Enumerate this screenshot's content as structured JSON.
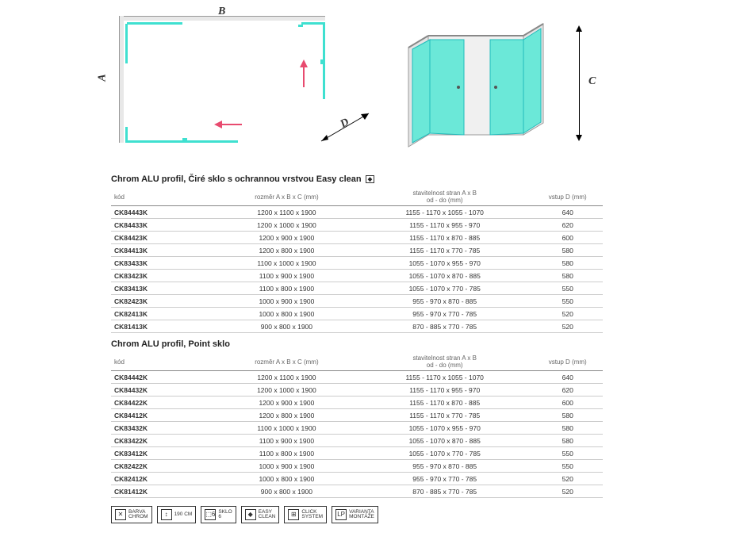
{
  "diagram": {
    "labels": {
      "A": "A",
      "B": "B",
      "C": "C",
      "D": "D"
    },
    "colors": {
      "glass": "#3fe0d0",
      "wall": "#e8e8e8",
      "arrow": "#e84b6f",
      "dim_line": "#000000"
    }
  },
  "table1": {
    "title": "Chrom ALU profil, Čiré sklo s ochrannou vrstvou Easy clean",
    "headers": {
      "code": "kód",
      "dim": "rozměr A x B x C (mm)",
      "adj": "stavitelnost stran A x B\nod - do (mm)",
      "entry": "vstup D (mm)"
    },
    "rows": [
      {
        "code": "CK84443K",
        "dim": "1200 x 1100 x 1900",
        "adj": "1155 - 1170 x 1055 - 1070",
        "entry": "640"
      },
      {
        "code": "CK84433K",
        "dim": "1200 x 1000 x 1900",
        "adj": "1155 - 1170 x 955 - 970",
        "entry": "620"
      },
      {
        "code": "CK84423K",
        "dim": "1200 x 900 x 1900",
        "adj": "1155 - 1170 x 870 - 885",
        "entry": "600"
      },
      {
        "code": "CK84413K",
        "dim": "1200 x 800 x 1900",
        "adj": "1155 - 1170 x 770 - 785",
        "entry": "580"
      },
      {
        "code": "CK83433K",
        "dim": "1100 x 1000 x 1900",
        "adj": "1055 - 1070 x 955 - 970",
        "entry": "580"
      },
      {
        "code": "CK83423K",
        "dim": "1100 x 900 x 1900",
        "adj": "1055 - 1070 x 870 - 885",
        "entry": "580"
      },
      {
        "code": "CK83413K",
        "dim": "1100 x 800 x 1900",
        "adj": "1055 - 1070 x 770 - 785",
        "entry": "550"
      },
      {
        "code": "CK82423K",
        "dim": "1000 x 900 x 1900",
        "adj": "955 - 970 x 870 - 885",
        "entry": "550"
      },
      {
        "code": "CK82413K",
        "dim": "1000 x 800 x 1900",
        "adj": "955 - 970 x 770 - 785",
        "entry": "520"
      },
      {
        "code": "CK81413K",
        "dim": "900 x 800 x 1900",
        "adj": "870 - 885 x 770 - 785",
        "entry": "520"
      }
    ]
  },
  "table2": {
    "title": "Chrom ALU profil, Point sklo",
    "headers": {
      "code": "kód",
      "dim": "rozměr A x B x C (mm)",
      "adj": "stavitelnost stran A x B\nod - do (mm)",
      "entry": "vstup D (mm)"
    },
    "rows": [
      {
        "code": "CK84442K",
        "dim": "1200 x 1100 x 1900",
        "adj": "1155 - 1170 x 1055 - 1070",
        "entry": "640"
      },
      {
        "code": "CK84432K",
        "dim": "1200 x 1000 x 1900",
        "adj": "1155 - 1170 x 955 - 970",
        "entry": "620"
      },
      {
        "code": "CK84422K",
        "dim": "1200 x 900 x 1900",
        "adj": "1155 - 1170 x 870 - 885",
        "entry": "600"
      },
      {
        "code": "CK84412K",
        "dim": "1200 x 800 x 1900",
        "adj": "1155 - 1170 x 770 - 785",
        "entry": "580"
      },
      {
        "code": "CK83432K",
        "dim": "1100 x 1000 x 1900",
        "adj": "1055 - 1070 x 955 - 970",
        "entry": "580"
      },
      {
        "code": "CK83422K",
        "dim": "1100 x 900 x 1900",
        "adj": "1055 - 1070 x 870 - 885",
        "entry": "580"
      },
      {
        "code": "CK83412K",
        "dim": "1100 x 800 x 1900",
        "adj": "1055 - 1070 x 770 - 785",
        "entry": "550"
      },
      {
        "code": "CK82422K",
        "dim": "1000 x 900 x 1900",
        "adj": "955 - 970 x 870 - 885",
        "entry": "550"
      },
      {
        "code": "CK82412K",
        "dim": "1000 x 800 x 1900",
        "adj": "955 - 970 x 770 - 785",
        "entry": "520"
      },
      {
        "code": "CK81412K",
        "dim": "900 x 800 x 1900",
        "adj": "870 - 885 x 770 - 785",
        "entry": "520"
      }
    ]
  },
  "badges": [
    {
      "icon": "✕",
      "label": "BARVA\nCHROM"
    },
    {
      "icon": "↕",
      "label": "190 CM"
    },
    {
      "icon": "⬚6",
      "label": "SKLO\n6"
    },
    {
      "icon": "◆",
      "label": "EASY\nCLEAN"
    },
    {
      "icon": "⊞",
      "label": "CLICK\nSYSTEM"
    },
    {
      "icon": "LP",
      "label": "VARIANTA\nMONTÁŽE"
    }
  ]
}
